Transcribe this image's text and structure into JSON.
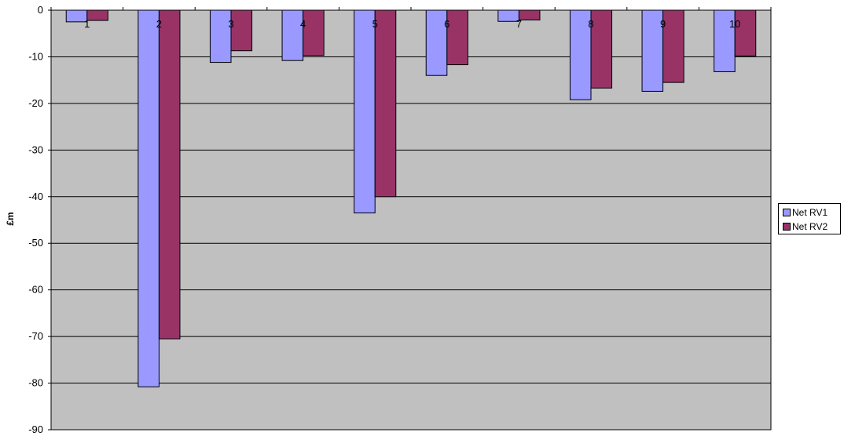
{
  "chart_data": {
    "type": "bar",
    "categories": [
      "1",
      "2",
      "3",
      "4",
      "5",
      "6",
      "7",
      "8",
      "9",
      "10"
    ],
    "series": [
      {
        "name": "Net RV1",
        "color": "#9999FF",
        "values": [
          -2.5,
          -80.8,
          -11.2,
          -10.8,
          -43.5,
          -14.0,
          -2.4,
          -19.2,
          -17.4,
          -13.2
        ]
      },
      {
        "name": "Net RV2",
        "color": "#993366",
        "values": [
          -2.2,
          -70.5,
          -8.7,
          -9.7,
          -40.0,
          -11.7,
          -2.1,
          -16.7,
          -15.5,
          -9.8
        ]
      }
    ],
    "ylabel": "£m",
    "ylim": [
      -90,
      0
    ],
    "yticks": [
      0,
      -10,
      -20,
      -30,
      -40,
      -50,
      -60,
      -70,
      -80,
      -90
    ],
    "plot_background": "#C0C0C0",
    "gridlines": true,
    "legend_position": "right"
  }
}
